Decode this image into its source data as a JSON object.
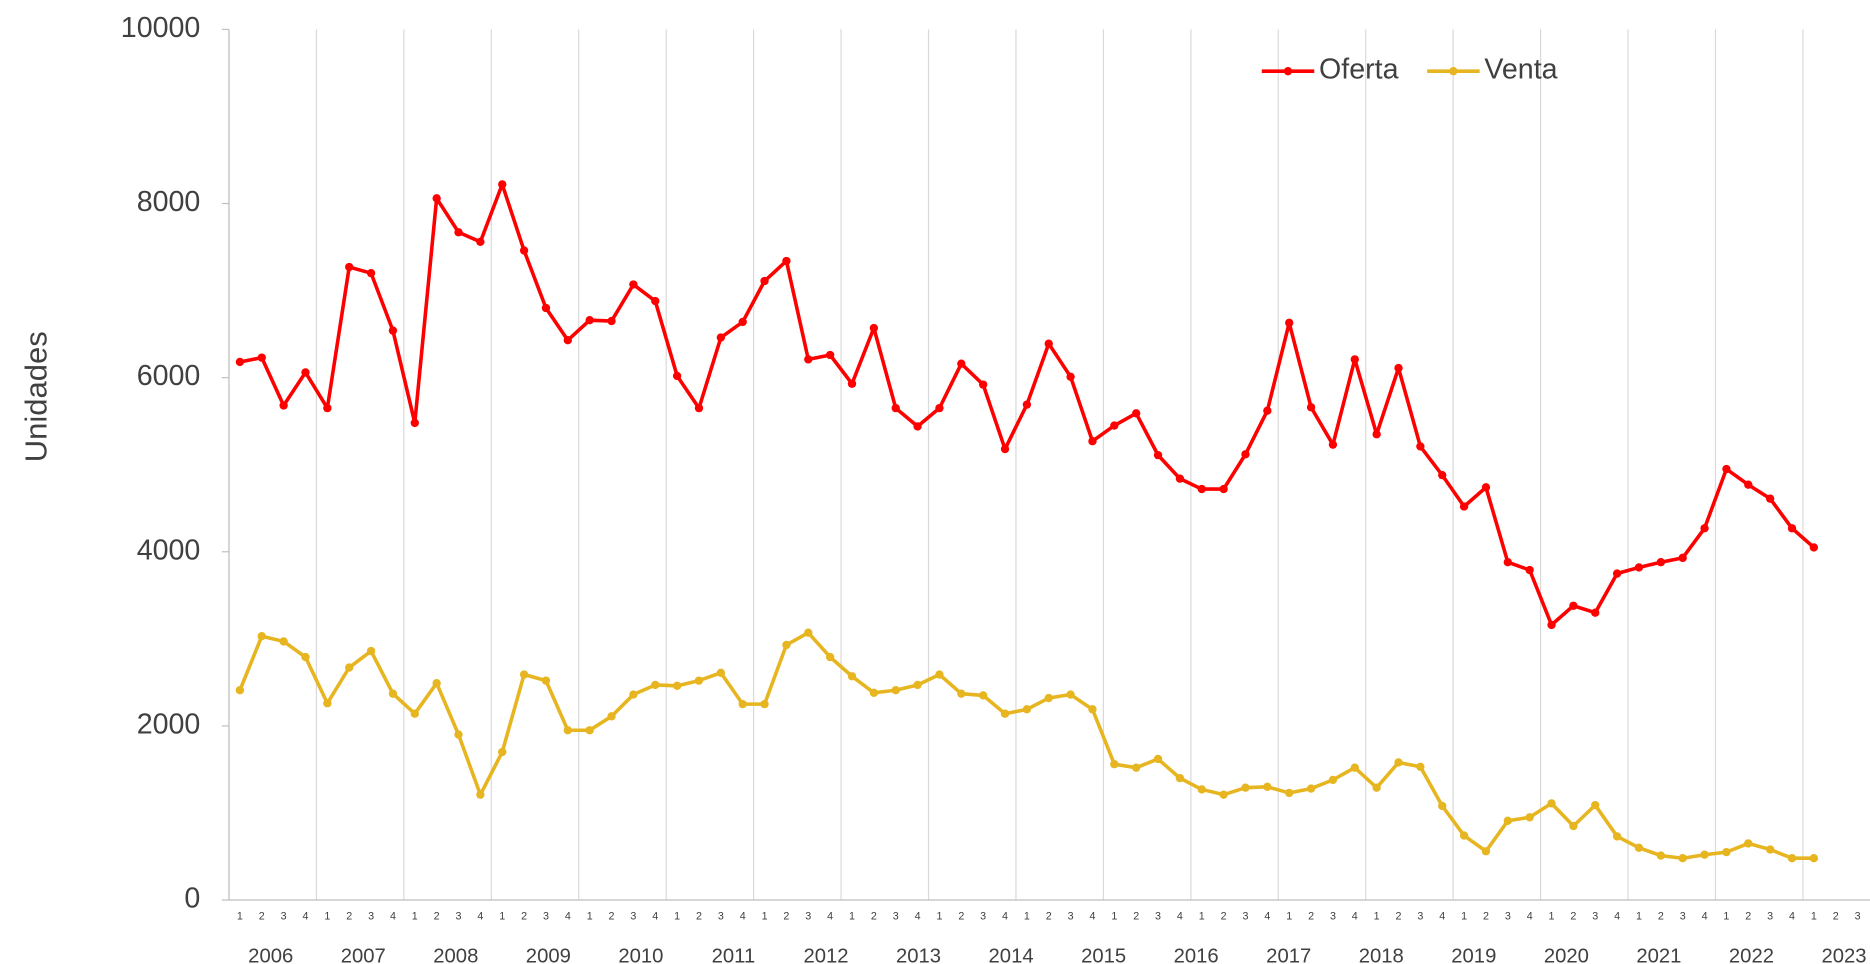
{
  "chart_data": {
    "type": "line",
    "y_label": "Unidades",
    "categories": [
      "1",
      "2",
      "3",
      "4",
      "1",
      "2",
      "3",
      "4",
      "1",
      "2",
      "3",
      "4",
      "1",
      "2",
      "3",
      "4",
      "1",
      "2",
      "3",
      "4",
      "1",
      "2",
      "3",
      "4",
      "1",
      "2",
      "3",
      "4",
      "1",
      "2",
      "3",
      "4",
      "1",
      "2",
      "3",
      "4",
      "1",
      "2",
      "3",
      "4",
      "1",
      "2",
      "3",
      "4",
      "1",
      "2",
      "3",
      "4",
      "1",
      "2",
      "3",
      "4",
      "1",
      "2",
      "3",
      "4",
      "1",
      "2",
      "3",
      "4",
      "1",
      "2",
      "3",
      "4",
      "1",
      "2",
      "3",
      "4",
      "1",
      "2",
      "3",
      "4",
      "1",
      "2",
      "3"
    ],
    "year_labels": [
      "2006",
      "2007",
      "2008",
      "2009",
      "2010",
      "2011",
      "2012",
      "2013",
      "2014",
      "2015",
      "2016",
      "2017",
      "2018",
      "2019",
      "2020",
      "2021",
      "2022",
      "2023"
    ],
    "series": [
      {
        "name": "Oferta",
        "color": "#ff0000",
        "values": [
          6180,
          6230,
          5680,
          6060,
          5650,
          7270,
          7200,
          6540,
          5480,
          8060,
          7670,
          7560,
          8220,
          7460,
          6800,
          6430,
          6660,
          6650,
          7070,
          6880,
          6020,
          5650,
          6460,
          6640,
          7110,
          7340,
          6210,
          6260,
          5930,
          6570,
          5650,
          5440,
          5650,
          6160,
          5920,
          5180,
          5690,
          6390,
          6010,
          5270,
          5450,
          5590,
          5110,
          4840,
          4720,
          4720,
          5120,
          5620,
          6630,
          5660,
          5230,
          6210,
          5350,
          6110,
          5210,
          4880,
          4520,
          4740,
          3880,
          3790,
          3160,
          3380,
          3300,
          3750,
          3820,
          3880,
          3930,
          4270,
          4950,
          4770,
          4610,
          4270,
          4050,
          null,
          null
        ]
      },
      {
        "name": "Venta",
        "color": "#e6b520",
        "values": [
          2410,
          3030,
          2970,
          2790,
          2260,
          2670,
          2860,
          2370,
          2140,
          2490,
          1900,
          1210,
          1700,
          2590,
          2520,
          1950,
          1950,
          2110,
          2360,
          2470,
          2460,
          2520,
          2610,
          2250,
          2250,
          2930,
          3070,
          2790,
          2570,
          2380,
          2410,
          2470,
          2590,
          2370,
          2350,
          2140,
          2190,
          2320,
          2360,
          2190,
          1560,
          1520,
          1620,
          1400,
          1270,
          1210,
          1290,
          1300,
          1230,
          1280,
          1380,
          1520,
          1290,
          1580,
          1530,
          1080,
          740,
          560,
          910,
          950,
          1110,
          850,
          1090,
          730,
          600,
          510,
          480,
          520,
          550,
          650,
          580,
          480,
          480,
          null,
          null
        ]
      }
    ],
    "ylim": [
      0,
      10000
    ],
    "yticks": [
      0,
      2000,
      4000,
      6000,
      8000,
      10000
    ],
    "legend": "top-right"
  }
}
